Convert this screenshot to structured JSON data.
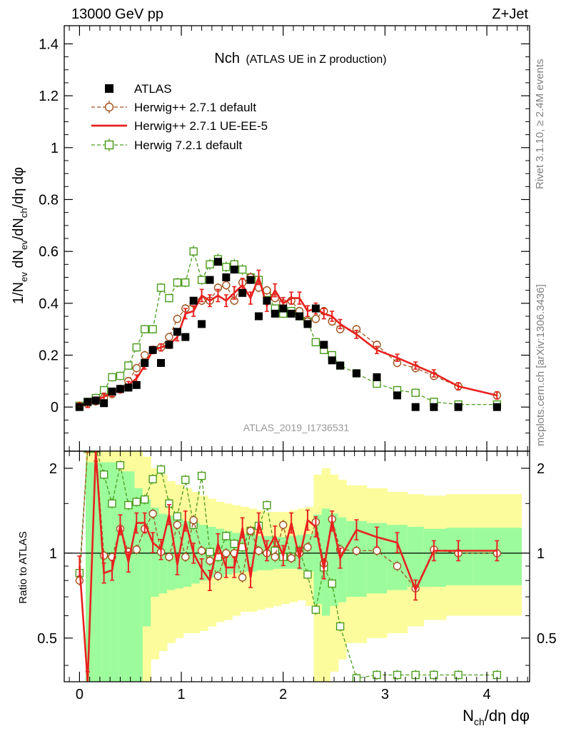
{
  "header": {
    "left": "13000 GeV pp",
    "right": "Z+Jet"
  },
  "side_labels": {
    "rivet": "Rivet 3.1.10, ≥ 2.4M events",
    "mcplots": "mcplots.cern.ch [arXiv:1306.3436]"
  },
  "analysis_id": "ATLAS_2019_I1736531",
  "chart_data": [
    {
      "type": "scatter",
      "panel": "main",
      "title_main": "Nch",
      "title_sub": "(ATLAS UE in Z production)",
      "ylabel": "1/N_ev dN_ev/dN_ch/dη dφ",
      "xlim": [
        -0.15,
        4.42
      ],
      "ylim": [
        -0.17,
        1.47
      ],
      "xticks": [
        0,
        1,
        2,
        3,
        4
      ],
      "yticks": [
        0,
        0.2,
        0.4,
        0.6,
        0.8,
        1,
        1.2,
        1.4
      ],
      "series": [
        {
          "name": "ATLAS",
          "style": "data",
          "color": "#000000",
          "x": [
            0.0,
            0.08,
            0.16,
            0.24,
            0.32,
            0.4,
            0.48,
            0.56,
            0.64,
            0.72,
            0.8,
            0.88,
            0.96,
            1.04,
            1.12,
            1.2,
            1.28,
            1.36,
            1.44,
            1.52,
            1.6,
            1.68,
            1.76,
            1.84,
            1.92,
            2.0,
            2.08,
            2.16,
            2.24,
            2.32,
            2.4,
            2.48,
            2.56,
            2.72,
            2.92,
            3.12,
            3.3,
            3.48,
            3.72,
            4.1
          ],
          "y": [
            0.0,
            0.02,
            0.025,
            0.015,
            0.06,
            0.07,
            0.075,
            0.085,
            0.17,
            0.22,
            0.17,
            0.24,
            0.29,
            0.27,
            0.41,
            0.32,
            0.49,
            0.56,
            0.5,
            0.53,
            0.44,
            0.49,
            0.35,
            0.41,
            0.36,
            0.38,
            0.36,
            0.35,
            0.32,
            0.38,
            0.24,
            0.18,
            0.16,
            0.13,
            0.115,
            0.045,
            0.0,
            0.0,
            0.0,
            0.0
          ]
        },
        {
          "name": "Herwig++ 2.7.1 default",
          "style": "dashed-circle",
          "color": "#a0521b",
          "x": [
            0.0,
            0.08,
            0.16,
            0.24,
            0.32,
            0.4,
            0.48,
            0.56,
            0.64,
            0.72,
            0.8,
            0.88,
            0.96,
            1.04,
            1.12,
            1.2,
            1.28,
            1.36,
            1.44,
            1.52,
            1.6,
            1.68,
            1.76,
            1.84,
            1.92,
            2.0,
            2.08,
            2.16,
            2.24,
            2.32,
            2.4,
            2.48,
            2.56,
            2.72,
            2.92,
            3.12,
            3.3,
            3.48,
            3.72,
            4.1
          ],
          "y": [
            0.003,
            0.013,
            0.022,
            0.035,
            0.05,
            0.07,
            0.1,
            0.15,
            0.2,
            0.22,
            0.23,
            0.27,
            0.34,
            0.38,
            0.4,
            0.41,
            0.41,
            0.46,
            0.47,
            0.41,
            0.48,
            0.5,
            0.46,
            0.45,
            0.42,
            0.4,
            0.41,
            0.37,
            0.33,
            0.34,
            0.37,
            0.33,
            0.3,
            0.3,
            0.24,
            0.17,
            0.15,
            0.12,
            0.08,
            0.045
          ]
        },
        {
          "name": "Herwig++ 2.7.1 UE-EE-5",
          "style": "solid-line",
          "color": "#e8221f",
          "x": [
            0.0,
            0.08,
            0.16,
            0.24,
            0.32,
            0.4,
            0.48,
            0.56,
            0.64,
            0.72,
            0.8,
            0.88,
            0.96,
            1.04,
            1.12,
            1.2,
            1.28,
            1.36,
            1.44,
            1.52,
            1.6,
            1.68,
            1.76,
            1.84,
            1.92,
            2.0,
            2.08,
            2.16,
            2.24,
            2.32,
            2.4,
            2.48,
            2.56,
            2.72,
            2.92,
            3.12,
            3.3,
            3.48,
            3.72,
            4.1
          ],
          "y": [
            0.003,
            0.012,
            0.025,
            0.04,
            0.055,
            0.068,
            0.085,
            0.11,
            0.16,
            0.22,
            0.23,
            0.24,
            0.27,
            0.36,
            0.37,
            0.43,
            0.41,
            0.43,
            0.41,
            0.44,
            0.47,
            0.42,
            0.5,
            0.39,
            0.45,
            0.4,
            0.42,
            0.42,
            0.37,
            0.38,
            0.36,
            0.35,
            0.32,
            0.28,
            0.22,
            0.19,
            0.16,
            0.13,
            0.08,
            0.045
          ]
        },
        {
          "name": "Herwig 7.2.1 default",
          "style": "dashed-square",
          "color": "#4a9c1c",
          "x": [
            0.0,
            0.08,
            0.16,
            0.24,
            0.32,
            0.4,
            0.48,
            0.56,
            0.64,
            0.72,
            0.8,
            0.88,
            0.96,
            1.04,
            1.12,
            1.2,
            1.28,
            1.36,
            1.44,
            1.52,
            1.6,
            1.68,
            1.76,
            1.84,
            1.92,
            2.0,
            2.08,
            2.16,
            2.24,
            2.32,
            2.4,
            2.48,
            2.56,
            2.72,
            2.92,
            3.12,
            3.3,
            3.48,
            3.72,
            4.1
          ],
          "y": [
            0.005,
            0.02,
            0.035,
            0.065,
            0.115,
            0.12,
            0.16,
            0.23,
            0.3,
            0.3,
            0.46,
            0.42,
            0.48,
            0.48,
            0.6,
            0.49,
            0.55,
            0.57,
            0.54,
            0.55,
            0.53,
            0.5,
            0.49,
            0.44,
            0.38,
            0.36,
            0.37,
            0.35,
            0.33,
            0.25,
            0.22,
            0.2,
            0.16,
            0.13,
            0.09,
            0.065,
            0.055,
            0.02,
            0.01,
            0.01
          ]
        }
      ]
    },
    {
      "type": "line",
      "panel": "ratio",
      "ylabel": "Ratio to ATLAS",
      "xlabel": "N_ch/dη dφ",
      "xlim": [
        -0.15,
        4.42
      ],
      "ylim": [
        0.35,
        2.3
      ],
      "xticks": [
        0,
        1,
        2,
        3,
        4
      ],
      "yticks": [
        0.5,
        1,
        2
      ],
      "reference_line": 1,
      "bands": {
        "x_edges": [
          0.06,
          0.14,
          0.22,
          0.3,
          0.38,
          0.46,
          0.54,
          0.62,
          0.7,
          0.78,
          0.86,
          0.94,
          1.02,
          1.1,
          1.18,
          1.26,
          1.34,
          1.42,
          1.5,
          1.58,
          1.66,
          1.74,
          1.82,
          1.9,
          1.98,
          2.06,
          2.14,
          2.22,
          2.3,
          2.38,
          2.46,
          2.54,
          2.62,
          2.82,
          3.02,
          3.22,
          3.38,
          3.6,
          3.86,
          4.34
        ],
        "green_low": [
          0.3,
          0.3,
          0.3,
          0.3,
          0.35,
          0.35,
          0.35,
          0.55,
          0.7,
          0.72,
          0.74,
          0.75,
          0.76,
          0.78,
          0.8,
          0.82,
          0.82,
          0.84,
          0.85,
          0.86,
          0.86,
          0.87,
          0.87,
          0.88,
          0.88,
          0.88,
          0.87,
          0.86,
          0.66,
          0.6,
          0.65,
          0.67,
          0.7,
          0.72,
          0.74,
          0.76,
          0.76,
          0.77,
          0.77
        ],
        "green_high": [
          2.1,
          2.1,
          2.1,
          2.1,
          1.95,
          1.95,
          1.7,
          1.55,
          1.45,
          1.38,
          1.36,
          1.32,
          1.3,
          1.28,
          1.26,
          1.24,
          1.22,
          1.2,
          1.18,
          1.17,
          1.16,
          1.15,
          1.15,
          1.14,
          1.14,
          1.15,
          1.16,
          1.17,
          1.37,
          1.44,
          1.38,
          1.34,
          1.3,
          1.28,
          1.26,
          1.24,
          1.22,
          1.23,
          1.23
        ],
        "yellow_low": [
          0.3,
          0.3,
          0.3,
          0.3,
          0.3,
          0.3,
          0.3,
          0.35,
          0.42,
          0.45,
          0.48,
          0.5,
          0.52,
          0.52,
          0.53,
          0.55,
          0.57,
          0.58,
          0.6,
          0.62,
          0.62,
          0.63,
          0.64,
          0.65,
          0.66,
          0.67,
          0.68,
          0.65,
          0.3,
          0.3,
          0.38,
          0.42,
          0.48,
          0.5,
          0.52,
          0.55,
          0.58,
          0.6,
          0.6
        ],
        "yellow_high": [
          2.4,
          2.4,
          2.4,
          2.4,
          2.4,
          2.4,
          2.3,
          2.2,
          2.0,
          1.9,
          1.8,
          1.75,
          1.7,
          1.65,
          1.6,
          1.56,
          1.52,
          1.5,
          1.48,
          1.46,
          1.44,
          1.42,
          1.4,
          1.4,
          1.4,
          1.42,
          1.44,
          1.46,
          1.9,
          2.0,
          1.9,
          1.82,
          1.74,
          1.7,
          1.65,
          1.62,
          1.6,
          1.62,
          1.62
        ]
      },
      "series": [
        {
          "name": "Herwig++ 2.7.1 default",
          "style": "dashed-circle",
          "color": "#a0521b",
          "x": [
            0.0,
            0.08,
            0.16,
            0.24,
            0.32,
            0.4,
            0.48,
            0.56,
            0.64,
            0.72,
            0.8,
            0.88,
            0.96,
            1.04,
            1.12,
            1.2,
            1.28,
            1.36,
            1.44,
            1.52,
            1.6,
            1.68,
            1.76,
            1.84,
            1.92,
            2.0,
            2.08,
            2.16,
            2.24,
            2.32,
            2.4,
            2.48,
            2.56,
            2.72,
            2.92,
            3.12,
            3.3,
            3.48,
            3.72,
            4.1
          ],
          "y": [
            0.8,
            2.5,
            2.5,
            0.98,
            0.97,
            1.22,
            1.01,
            1.03,
            1.22,
            1.38,
            1.01,
            0.97,
            1.26,
            0.97,
            1.31,
            1.02,
            0.94,
            0.83,
            1.0,
            1.0,
            0.82,
            1.2,
            1.02,
            1.0,
            0.97,
            1.26,
            0.96,
            1.0,
            1.05,
            1.29,
            0.92,
            1.32,
            1.03,
            1.02,
            1.02,
            0.9,
            0.75,
            1.03,
            1.0,
            1.0
          ]
        },
        {
          "name": "Herwig++ 2.7.1 UE-EE-5",
          "style": "solid-line",
          "color": "#e8221f",
          "x": [
            0.0,
            0.08,
            0.16,
            0.24,
            0.32,
            0.4,
            0.48,
            0.56,
            0.64,
            0.72,
            0.8,
            0.88,
            0.96,
            1.04,
            1.12,
            1.2,
            1.28,
            1.36,
            1.44,
            1.52,
            1.6,
            1.68,
            1.76,
            1.84,
            1.92,
            2.0,
            2.08,
            2.16,
            2.24,
            2.32,
            2.4,
            2.48,
            2.56,
            2.72,
            2.92,
            3.12,
            3.3,
            3.48,
            3.72,
            4.1
          ],
          "y": [
            0.9,
            0.35,
            2.3,
            0.85,
            0.87,
            1.26,
            0.93,
            1.28,
            1.28,
            1.09,
            1.03,
            1.37,
            0.91,
            1.3,
            1.0,
            0.88,
            0.8,
            1.08,
            0.89,
            0.89,
            1.23,
            0.82,
            1.28,
            1.02,
            1.15,
            0.98,
            1.28,
            0.96,
            1.31,
            1.24,
            0.88,
            1.3,
            0.96,
            1.21,
            1.14,
            1.09,
            0.74,
            1.02,
            1.02,
            1.02
          ]
        },
        {
          "name": "Herwig 7.2.1 default",
          "style": "dashed-square",
          "color": "#4a9c1c",
          "x": [
            0.0,
            0.08,
            0.16,
            0.24,
            0.32,
            0.4,
            0.48,
            0.56,
            0.64,
            0.72,
            0.8,
            0.88,
            0.96,
            1.04,
            1.12,
            1.2,
            1.28,
            1.36,
            1.44,
            1.52,
            1.6,
            1.68,
            1.76,
            1.84,
            1.92,
            2.0,
            2.08,
            2.16,
            2.24,
            2.32,
            2.4,
            2.48,
            2.56,
            2.72,
            2.92,
            3.12,
            3.3,
            3.48,
            3.72,
            4.1
          ],
          "y": [
            0.85,
            2.5,
            2.5,
            1.9,
            1.5,
            2.05,
            1.48,
            1.52,
            1.55,
            1.83,
            1.98,
            1.5,
            1.35,
            1.82,
            1.26,
            1.88,
            1.01,
            0.97,
            1.15,
            1.08,
            1.05,
            1.2,
            1.25,
            1.48,
            1.02,
            0.97,
            0.97,
            1.02,
            0.84,
            0.63,
            0.89,
            0.78,
            0.55,
            0.36,
            0.37,
            0.37,
            0.37,
            0.37,
            0.37,
            0.37
          ]
        }
      ]
    }
  ]
}
